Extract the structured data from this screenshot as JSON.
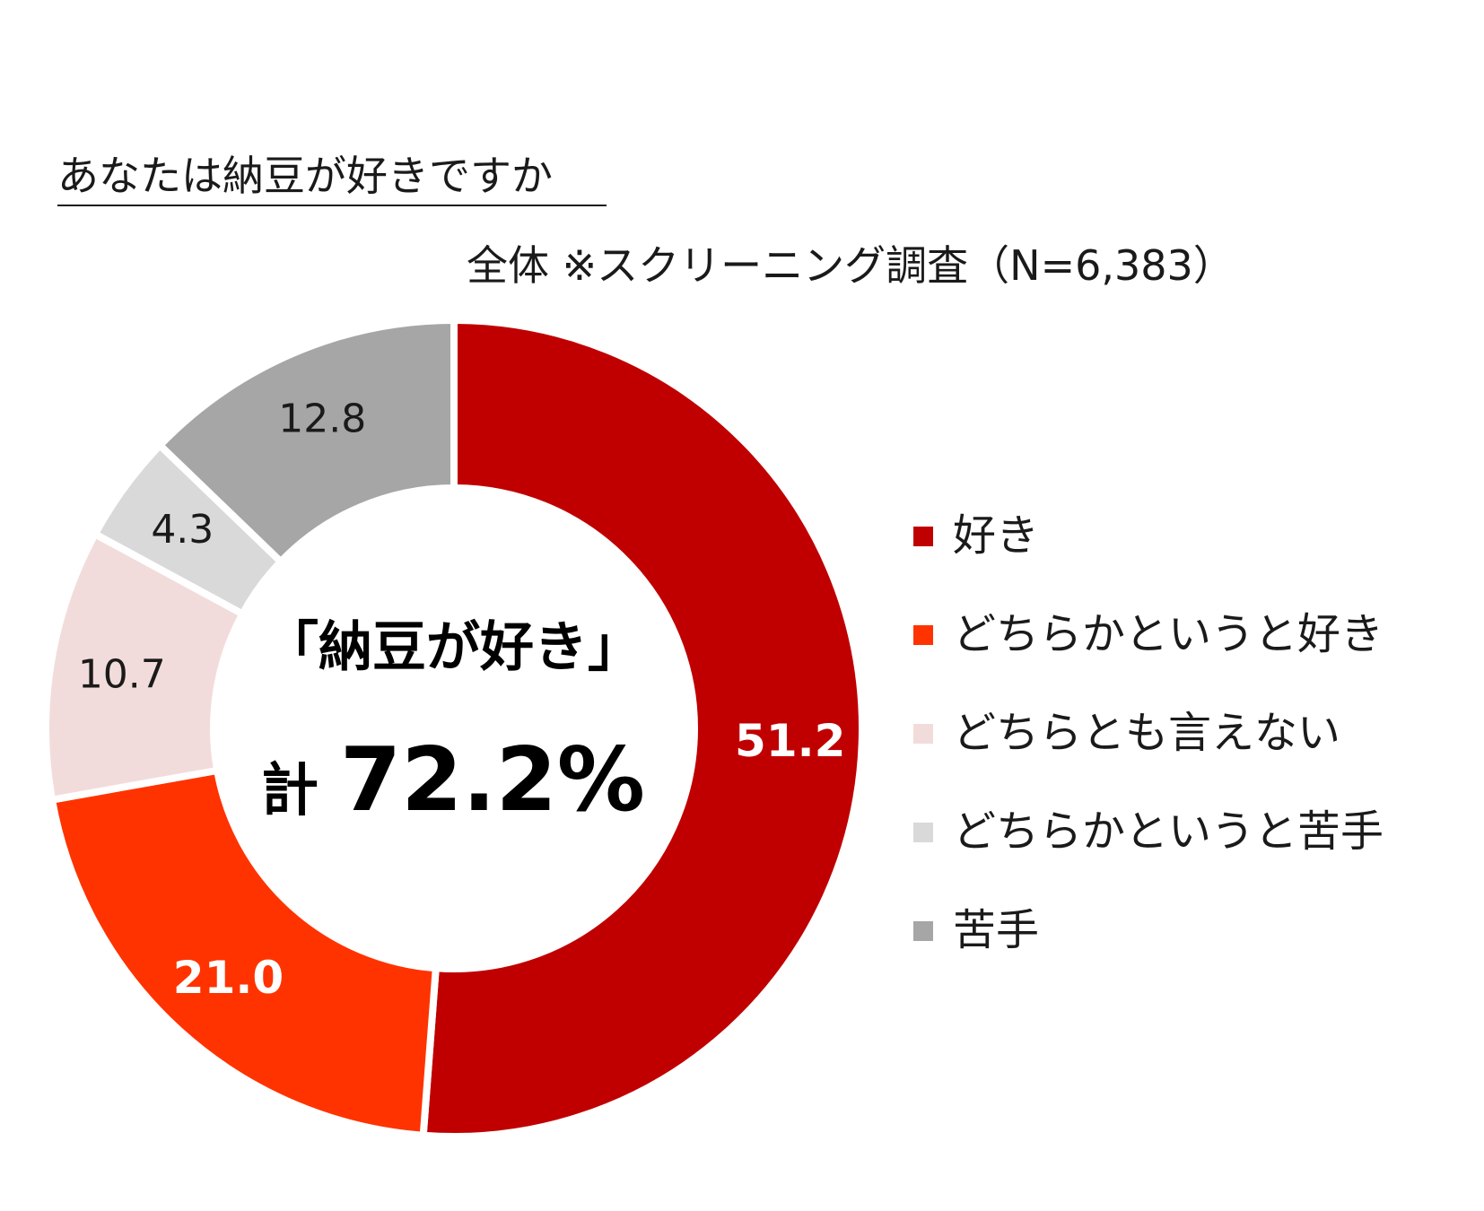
{
  "header": {
    "question": "あなたは納豆が好きですか",
    "sample_note": "全体 ※スクリーニング調査（N=6,383）"
  },
  "center": {
    "headline": "「納豆が好き」",
    "total_prefix": "計",
    "total_value": "72.2%"
  },
  "chart_data": {
    "type": "pie",
    "variant": "donut",
    "categories": [
      "好き",
      "どちらかというと好き",
      "どちらとも言えない",
      "どちらかというと苦手",
      "苦手"
    ],
    "values": [
      51.2,
      21.0,
      10.7,
      4.3,
      12.8
    ],
    "labels": [
      "51.2",
      "21.0",
      "10.7",
      "4.3",
      "12.8"
    ],
    "colors": [
      "#C00000",
      "#FF3300",
      "#F2DCDB",
      "#D9D9D9",
      "#A6A6A6"
    ],
    "label_colors": [
      "#FFFFFF",
      "#FFFFFF",
      "#1A1A1A",
      "#1A1A1A",
      "#1A1A1A"
    ],
    "label_bold": [
      true,
      true,
      false,
      false,
      false
    ],
    "start": "12 o'clock",
    "direction": "clockwise",
    "legend_position": "right"
  }
}
